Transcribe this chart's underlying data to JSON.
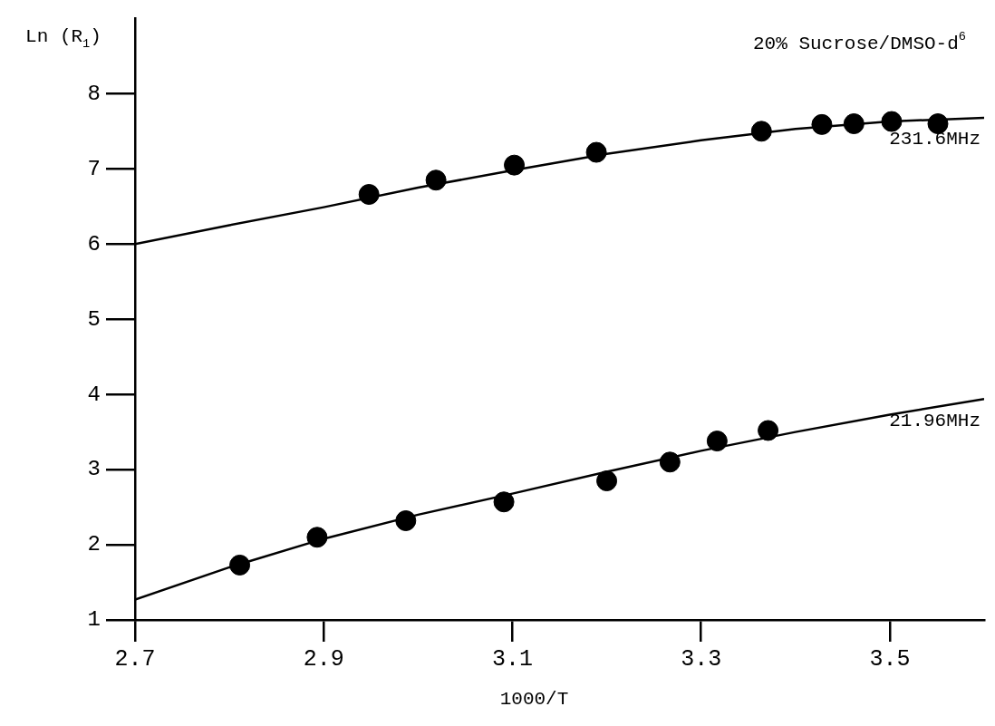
{
  "chart_data": {
    "type": "scatter",
    "xlabel": "1000/T",
    "ylabel": "Ln (R$_{1}$)",
    "annotations": [
      "20% Sucrose/DMSO-d$^{6}$"
    ],
    "xlim": [
      2.7,
      3.6
    ],
    "xticks": [
      2.7,
      2.9,
      3.1,
      3.3,
      3.5
    ],
    "ylim": [
      1,
      9
    ],
    "yticks": [
      1,
      2,
      3,
      4,
      5,
      6,
      7,
      8
    ],
    "grid": false,
    "legend": false,
    "series": [
      {
        "color": "#000000",
        "marker": "circle",
        "x": [
          2.948,
          3.019,
          3.102,
          3.189,
          3.364,
          3.428,
          3.462,
          3.502,
          3.551
        ],
        "values": [
          6.66,
          6.85,
          7.05,
          7.22,
          7.5,
          7.59,
          7.6,
          7.63,
          7.6
        ]
      },
      {
        "type": "line",
        "name": "231.6MHz",
        "color": "#000000",
        "marker": "none",
        "line_style": "solid",
        "x": [
          2.7,
          2.8,
          2.9,
          3.0,
          3.1,
          3.2,
          3.3,
          3.4,
          3.5,
          3.6
        ],
        "values": [
          6.0,
          6.25,
          6.49,
          6.75,
          6.98,
          7.2,
          7.38,
          7.53,
          7.63,
          7.68
        ]
      },
      {
        "color": "#000000",
        "marker": "circle",
        "x": [
          2.811,
          2.893,
          2.987,
          3.091,
          3.2,
          3.267,
          3.317,
          3.371
        ],
        "values": [
          1.73,
          2.1,
          2.32,
          2.57,
          2.85,
          3.1,
          3.38,
          3.52
        ]
      },
      {
        "type": "line",
        "name": "21.96MHz",
        "color": "#000000",
        "marker": "none",
        "line_style": "solid",
        "x": [
          2.7,
          2.8,
          2.9,
          3.0,
          3.1,
          3.2,
          3.3,
          3.4,
          3.5,
          3.6
        ],
        "values": [
          1.27,
          1.7,
          2.08,
          2.4,
          2.68,
          2.97,
          3.25,
          3.5,
          3.73,
          3.94
        ]
      }
    ]
  }
}
